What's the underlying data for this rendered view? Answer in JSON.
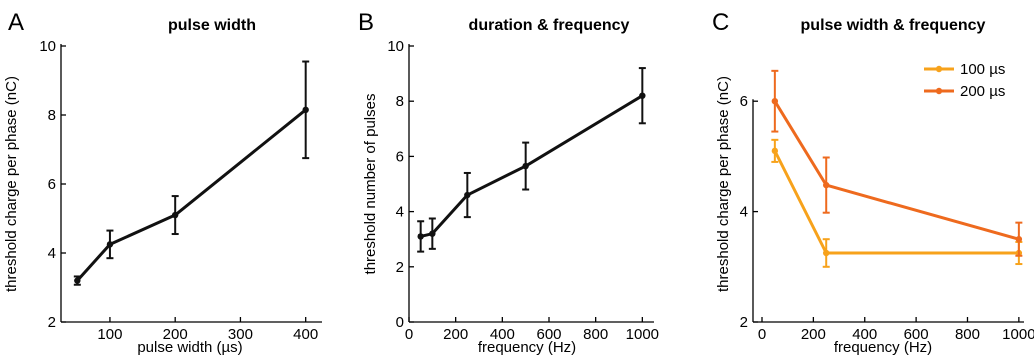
{
  "chart_data": [
    {
      "panel": "A",
      "type": "line",
      "title": "pulse width",
      "xlabel": "pulse width (µs)",
      "ylabel": "threshold charge per phase (nC)",
      "xlim": [
        25,
        425
      ],
      "ylim": [
        2,
        10
      ],
      "xticks": [
        100,
        200,
        300,
        400
      ],
      "yticks": [
        2,
        4,
        6,
        8,
        10
      ],
      "legend": null,
      "series": [
        {
          "color": "#111111",
          "points": [
            {
              "x": 50,
              "y": 3.2,
              "err": 0.12
            },
            {
              "x": 100,
              "y": 4.25,
              "err": 0.4
            },
            {
              "x": 200,
              "y": 5.1,
              "err": 0.55
            },
            {
              "x": 400,
              "y": 8.15,
              "err": 1.4
            }
          ]
        }
      ]
    },
    {
      "panel": "B",
      "type": "line",
      "title": "duration & frequency",
      "xlabel": "frequency (Hz)",
      "ylabel": "threshold number of pulses",
      "xlim": [
        0,
        1050
      ],
      "ylim": [
        0,
        10
      ],
      "xticks": [
        0,
        200,
        400,
        600,
        800,
        1000
      ],
      "yticks": [
        0,
        2,
        4,
        6,
        8,
        10
      ],
      "legend": null,
      "series": [
        {
          "color": "#111111",
          "points": [
            {
              "x": 50,
              "y": 3.1,
              "err": 0.55
            },
            {
              "x": 100,
              "y": 3.2,
              "err": 0.55
            },
            {
              "x": 250,
              "y": 4.6,
              "err": 0.8
            },
            {
              "x": 500,
              "y": 5.65,
              "err": 0.85
            },
            {
              "x": 1000,
              "y": 8.2,
              "err": 1.0
            }
          ]
        }
      ]
    },
    {
      "panel": "C",
      "type": "line",
      "title": "pulse width & frequency",
      "xlabel": "frequency (Hz)",
      "ylabel": "threshold charge per phase (nC)",
      "xlim": [
        0,
        1020
      ],
      "ylim": [
        2,
        7
      ],
      "xticks": [
        0,
        200,
        400,
        600,
        800,
        1000
      ],
      "yticks": [
        2,
        4,
        6
      ],
      "legend": "top-right",
      "series": [
        {
          "name": "100 µs",
          "color": "#f7a21b",
          "points": [
            {
              "x": 50,
              "y": 5.1,
              "err": 0.2
            },
            {
              "x": 250,
              "y": 3.25,
              "err": 0.25
            },
            {
              "x": 1000,
              "y": 3.25,
              "err": 0.2
            }
          ]
        },
        {
          "name": "200 µs",
          "color": "#ee6a1e",
          "points": [
            {
              "x": 50,
              "y": 6.0,
              "err": 0.55
            },
            {
              "x": 250,
              "y": 4.48,
              "err": 0.5
            },
            {
              "x": 1000,
              "y": 3.5,
              "err": 0.3
            }
          ]
        }
      ]
    }
  ]
}
